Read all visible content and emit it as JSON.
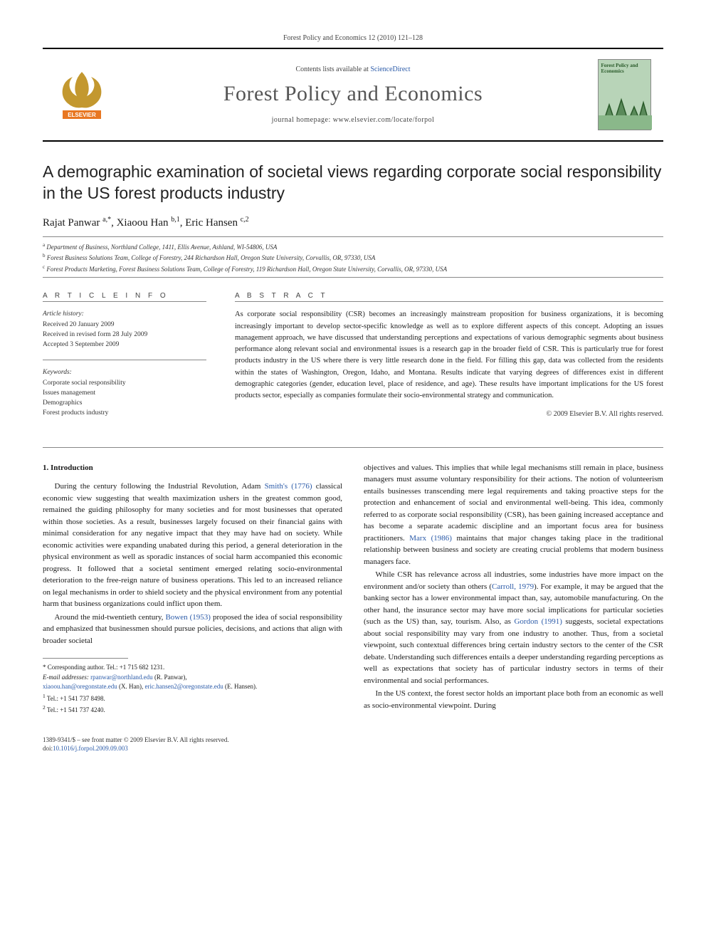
{
  "running_head": "Forest Policy and Economics 12 (2010) 121–128",
  "masthead": {
    "contents_line_pre": "Contents lists available at ",
    "contents_link": "ScienceDirect",
    "journal_name": "Forest Policy and Economics",
    "homepage_line": "journal homepage: www.elsevier.com/locate/forpol",
    "cover_title": "Forest Policy and Economics"
  },
  "article": {
    "title": "A demographic examination of societal views regarding corporate social responsibility in the US forest products industry",
    "authors_html": "Rajat Panwar <sup>a,</sup>*, Xiaoou Han <sup>b,1</sup>, Eric Hansen <sup>c,2</sup>",
    "authors": [
      {
        "name": "Rajat Panwar",
        "marks": "a,*"
      },
      {
        "name": "Xiaoou Han",
        "marks": "b,1"
      },
      {
        "name": "Eric Hansen",
        "marks": "c,2"
      }
    ],
    "affiliations": [
      {
        "mark": "a",
        "text": "Department of Business, Northland College, 1411, Ellis Avenue, Ashland, WI-54806, USA"
      },
      {
        "mark": "b",
        "text": "Forest Business Solutions Team, College of Forestry, 244 Richardson Hall, Oregon State University, Corvallis, OR, 97330, USA"
      },
      {
        "mark": "c",
        "text": "Forest Products Marketing, Forest Business Solutions Team, College of Forestry, 119 Richardson Hall, Oregon State University, Corvallis, OR, 97330, USA"
      }
    ]
  },
  "article_info": {
    "heading": "A R T I C L E   I N F O",
    "history_label": "Article history:",
    "history": [
      "Received 20 January 2009",
      "Received in revised form 28 July 2009",
      "Accepted 3 September 2009"
    ],
    "keywords_label": "Keywords:",
    "keywords": [
      "Corporate social responsibility",
      "Issues management",
      "Demographics",
      "Forest products industry"
    ]
  },
  "abstract": {
    "heading": "A B S T R A C T",
    "text": "As corporate social responsibility (CSR) becomes an increasingly mainstream proposition for business organizations, it is becoming increasingly important to develop sector-specific knowledge as well as to explore different aspects of this concept. Adopting an issues management approach, we have discussed that understanding perceptions and expectations of various demographic segments about business performance along relevant social and environmental issues is a research gap in the broader field of CSR. This is particularly true for forest products industry in the US where there is very little research done in the field. For filling this gap, data was collected from the residents within the states of Washington, Oregon, Idaho, and Montana. Results indicate that varying degrees of differences exist in different demographic categories (gender, education level, place of residence, and age). These results have important implications for the US forest products sector, especially as companies formulate their socio-environmental strategy and communication.",
    "copyright": "© 2009 Elsevier B.V. All rights reserved."
  },
  "body": {
    "section_heading": "1. Introduction",
    "paragraphs": [
      "During the century following the Industrial Revolution, Adam Smith's (1776) classical economic view suggesting that wealth maximization ushers in the greatest common good, remained the guiding philosophy for many societies and for most businesses that operated within those societies. As a result, businesses largely focused on their financial gains with minimal consideration for any negative impact that they may have had on society. While economic activities were expanding unabated during this period, a general deterioration in the physical environment as well as sporadic instances of social harm accompanied this economic progress. It followed that a societal sentiment emerged relating socio-environmental deterioration to the free-reign nature of business operations. This led to an increased reliance on legal mechanisms in order to shield society and the physical environment from any potential harm that business organizations could inflict upon them.",
      "Around the mid-twentieth century, Bowen (1953) proposed the idea of social responsibility and emphasized that businessmen should pursue policies, decisions, and actions that align with broader societal objectives and values. This implies that while legal mechanisms still remain in place, business managers must assume voluntary responsibility for their actions. The notion of volunteerism entails businesses transcending mere legal requirements and taking proactive steps for the protection and enhancement of social and environmental well-being. This idea, commonly referred to as corporate social responsibility (CSR), has been gaining increased acceptance and has become a separate academic discipline and an important focus area for business practitioners. Marx (1986) maintains that major changes taking place in the traditional relationship between business and society are creating crucial problems that modern business managers face.",
      "While CSR has relevance across all industries, some industries have more impact on the environment and/or society than others (Carroll, 1979). For example, it may be argued that the banking sector has a lower environmental impact than, say, automobile manufacturing. On the other hand, the insurance sector may have more social implications for particular societies (such as the US) than, say, tourism. Also, as Gordon (1991) suggests, societal expectations about social responsibility may vary from one industry to another. Thus, from a societal viewpoint, such contextual differences bring certain industry sectors to the center of the CSR debate. Understanding such differences entails a deeper understanding regarding perceptions as well as expectations that society has of particular industry sectors in terms of their environmental and social performances.",
      "In the US context, the forest sector holds an important place both from an economic as well as socio-environmental viewpoint. During"
    ],
    "refs": [
      "Smith's (1776)",
      "Bowen (1953)",
      "Marx (1986)",
      "Carroll, 1979",
      "Gordon (1991)"
    ]
  },
  "footnotes": {
    "corr_label": "* Corresponding author. Tel.: +1 715 682 1231.",
    "email_label": "E-mail addresses:",
    "emails": [
      {
        "addr": "rpanwar@northland.edu",
        "who": "(R. Panwar),"
      },
      {
        "addr": "xiaoou.han@oregonstate.edu",
        "who": "(X. Han),"
      },
      {
        "addr": "eric.hansen2@oregonstate.edu",
        "who": "(E. Hansen)."
      }
    ],
    "tels": [
      {
        "mark": "1",
        "text": "Tel.: +1 541 737 8498."
      },
      {
        "mark": "2",
        "text": "Tel.: +1 541 737 4240."
      }
    ]
  },
  "footer": {
    "issn_line": "1389-9341/$ – see front matter © 2009 Elsevier B.V. All rights reserved.",
    "doi_label": "doi:",
    "doi": "10.1016/j.forpol.2009.09.003"
  },
  "colors": {
    "link": "#2a5aa8",
    "text": "#1a1a1a",
    "muted": "#444444",
    "rule": "#888888",
    "cover_bg": "#b8d4b8",
    "elsevier_orange": "#e87722",
    "elsevier_tree": "#b8860b"
  }
}
